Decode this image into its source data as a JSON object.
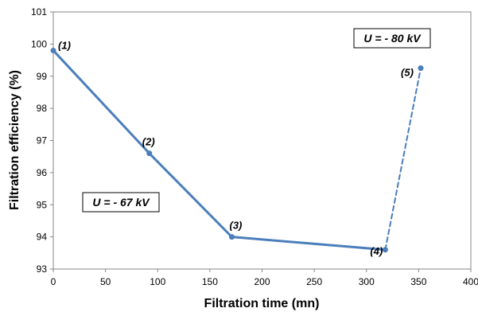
{
  "chart_data": {
    "type": "line",
    "xlabel": "Filtration time (mn)",
    "ylabel": "Filtration efficiency (%)",
    "xlim": [
      0,
      400
    ],
    "ylim": [
      93,
      101
    ],
    "xticks": [
      "0",
      "50",
      "100",
      "150",
      "200",
      "250",
      "300",
      "350",
      "400"
    ],
    "yticks": [
      "93",
      "94",
      "95",
      "96",
      "97",
      "98",
      "99",
      "100",
      "101"
    ],
    "grid": false,
    "line_color": "#4a7ebb",
    "points": [
      {
        "label": "(1)",
        "x": 0,
        "y": 99.8
      },
      {
        "label": "(2)",
        "x": 92,
        "y": 96.6
      },
      {
        "label": "(3)",
        "x": 171,
        "y": 94.0
      },
      {
        "label": "(4)",
        "x": 318,
        "y": 93.6
      },
      {
        "label": "(5)",
        "x": 352,
        "y": 99.25
      }
    ],
    "segments": [
      {
        "from": 0,
        "to": 1,
        "style": "solid"
      },
      {
        "from": 1,
        "to": 2,
        "style": "solid"
      },
      {
        "from": 2,
        "to": 3,
        "style": "solid"
      },
      {
        "from": 3,
        "to": 4,
        "style": "dashed"
      }
    ],
    "annotations": [
      {
        "text": "U = - 67 kV"
      },
      {
        "text": "U = - 80 kV"
      }
    ]
  }
}
